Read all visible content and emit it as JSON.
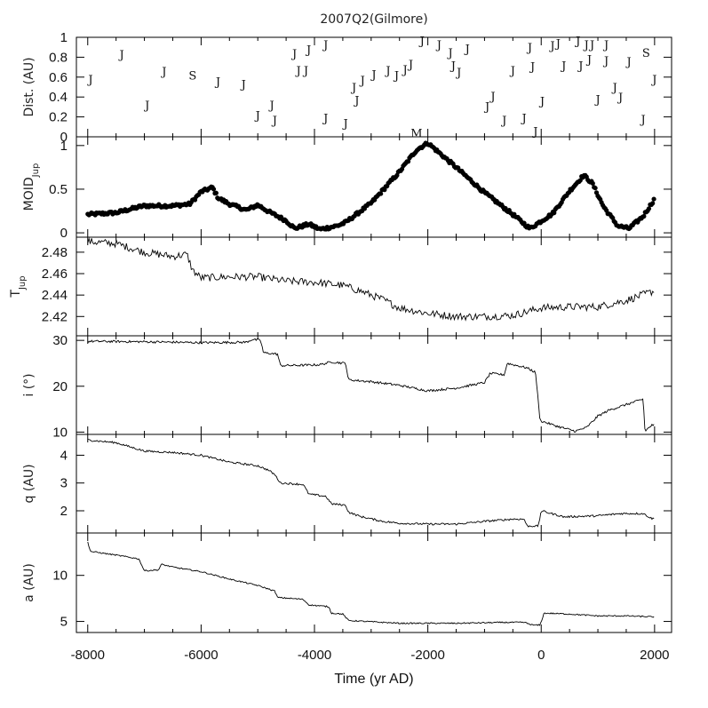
{
  "chart_data": {
    "type": "line",
    "title": "2007Q2(Gilmore)",
    "xlabel": "Time (yr AD)",
    "xlim": [
      -8200,
      2300
    ],
    "x_ticks": [
      -8000,
      -6000,
      -4000,
      -2000,
      0,
      2000
    ],
    "x_tick_labels": [
      "-8000",
      "-6000",
      "-4000",
      "-2000",
      "0",
      "2000"
    ],
    "panels": [
      {
        "id": "dist",
        "ylabel": "Dist. (AU)",
        "ylim": [
          0,
          1.0
        ],
        "y_ticks": [
          0,
          0.2,
          0.4,
          0.6,
          0.8,
          1
        ],
        "y_tick_labels": [
          "0",
          "0.2",
          "0.4",
          "0.6",
          "0.8",
          "1"
        ],
        "series_type": "encounters",
        "encounters": [
          {
            "x": -7950,
            "y": 0.58,
            "body": "J"
          },
          {
            "x": -7400,
            "y": 0.83,
            "body": "J"
          },
          {
            "x": -6950,
            "y": 0.32,
            "body": "J"
          },
          {
            "x": -6650,
            "y": 0.66,
            "body": "J"
          },
          {
            "x": -6150,
            "y": 0.62,
            "body": "S"
          },
          {
            "x": -5700,
            "y": 0.56,
            "body": "J"
          },
          {
            "x": -5250,
            "y": 0.53,
            "body": "J"
          },
          {
            "x": -5000,
            "y": 0.22,
            "body": "J"
          },
          {
            "x": -4750,
            "y": 0.32,
            "body": "J"
          },
          {
            "x": -4700,
            "y": 0.17,
            "body": "J"
          },
          {
            "x": -4350,
            "y": 0.84,
            "body": "J"
          },
          {
            "x": -4280,
            "y": 0.67,
            "body": "J"
          },
          {
            "x": -4150,
            "y": 0.67,
            "body": "J"
          },
          {
            "x": -4100,
            "y": 0.88,
            "body": "J"
          },
          {
            "x": -3800,
            "y": 0.19,
            "body": "J"
          },
          {
            "x": -3800,
            "y": 0.93,
            "body": "J"
          },
          {
            "x": -3450,
            "y": 0.14,
            "body": "J"
          },
          {
            "x": -3300,
            "y": 0.5,
            "body": "J"
          },
          {
            "x": -3250,
            "y": 0.37,
            "body": "J"
          },
          {
            "x": -3150,
            "y": 0.57,
            "body": "J"
          },
          {
            "x": -2950,
            "y": 0.63,
            "body": "J"
          },
          {
            "x": -2700,
            "y": 0.67,
            "body": "J"
          },
          {
            "x": -2550,
            "y": 0.62,
            "body": "J"
          },
          {
            "x": -2400,
            "y": 0.68,
            "body": "J"
          },
          {
            "x": -2300,
            "y": 0.73,
            "body": "J"
          },
          {
            "x": -2100,
            "y": 0.97,
            "body": "J"
          },
          {
            "x": -1800,
            "y": 0.93,
            "body": "J"
          },
          {
            "x": -1600,
            "y": 0.85,
            "body": "J"
          },
          {
            "x": -1550,
            "y": 0.72,
            "body": "J"
          },
          {
            "x": -1450,
            "y": 0.65,
            "body": "J"
          },
          {
            "x": -1300,
            "y": 0.89,
            "body": "J"
          },
          {
            "x": -950,
            "y": 0.31,
            "body": "J"
          },
          {
            "x": -850,
            "y": 0.41,
            "body": "J"
          },
          {
            "x": -650,
            "y": 0.17,
            "body": "J"
          },
          {
            "x": -500,
            "y": 0.67,
            "body": "J"
          },
          {
            "x": -300,
            "y": 0.19,
            "body": "J"
          },
          {
            "x": -200,
            "y": 0.9,
            "body": "J"
          },
          {
            "x": -150,
            "y": 0.71,
            "body": "J"
          },
          {
            "x": -100,
            "y": 0.06,
            "body": "J"
          },
          {
            "x": 20,
            "y": 0.36,
            "body": "J"
          },
          {
            "x": 200,
            "y": 0.92,
            "body": "J"
          },
          {
            "x": 300,
            "y": 0.94,
            "body": "J"
          },
          {
            "x": 400,
            "y": 0.72,
            "body": "J"
          },
          {
            "x": 650,
            "y": 0.97,
            "body": "J"
          },
          {
            "x": 700,
            "y": 0.72,
            "body": "J"
          },
          {
            "x": 800,
            "y": 0.93,
            "body": "J"
          },
          {
            "x": 850,
            "y": 0.78,
            "body": "J"
          },
          {
            "x": 900,
            "y": 0.93,
            "body": "J"
          },
          {
            "x": 1000,
            "y": 0.38,
            "body": "J"
          },
          {
            "x": 1150,
            "y": 0.93,
            "body": "J"
          },
          {
            "x": 1150,
            "y": 0.77,
            "body": "J"
          },
          {
            "x": 1300,
            "y": 0.5,
            "body": "J"
          },
          {
            "x": 1400,
            "y": 0.4,
            "body": "J"
          },
          {
            "x": 1550,
            "y": 0.76,
            "body": "J"
          },
          {
            "x": 1800,
            "y": 0.18,
            "body": "J"
          },
          {
            "x": 1850,
            "y": 0.85,
            "body": "S"
          },
          {
            "x": 2000,
            "y": 0.58,
            "body": "J"
          },
          {
            "x": -2200,
            "y": 0.04,
            "body": "M"
          }
        ]
      },
      {
        "id": "moid",
        "ylabel": "MOID",
        "ylabel_sub": "Jup",
        "ylim": [
          -0.05,
          1.1
        ],
        "y_ticks": [
          0,
          0.5,
          1
        ],
        "y_tick_labels": [
          "0",
          "0.5",
          "1"
        ],
        "series_type": "dots",
        "points": [
          [
            -8000,
            0.21
          ],
          [
            -7500,
            0.23
          ],
          [
            -7200,
            0.28
          ],
          [
            -7000,
            0.31
          ],
          [
            -6500,
            0.31
          ],
          [
            -6200,
            0.33
          ],
          [
            -6000,
            0.47
          ],
          [
            -5800,
            0.52
          ],
          [
            -5700,
            0.4
          ],
          [
            -5500,
            0.33
          ],
          [
            -5200,
            0.26
          ],
          [
            -5000,
            0.32
          ],
          [
            -4800,
            0.24
          ],
          [
            -4500,
            0.14
          ],
          [
            -4350,
            0.05
          ],
          [
            -4100,
            0.1
          ],
          [
            -3900,
            0.04
          ],
          [
            -3600,
            0.08
          ],
          [
            -3450,
            0.12
          ],
          [
            -3000,
            0.34
          ],
          [
            -2500,
            0.7
          ],
          [
            -2200,
            0.95
          ],
          [
            -2000,
            1.03
          ],
          [
            -1500,
            0.75
          ],
          [
            -1000,
            0.46
          ],
          [
            -500,
            0.21
          ],
          [
            -200,
            0.05
          ],
          [
            200,
            0.22
          ],
          [
            500,
            0.48
          ],
          [
            750,
            0.66
          ],
          [
            900,
            0.57
          ],
          [
            1100,
            0.3
          ],
          [
            1350,
            0.08
          ],
          [
            1550,
            0.05
          ],
          [
            1800,
            0.19
          ],
          [
            2000,
            0.39
          ]
        ]
      },
      {
        "id": "tjup",
        "ylabel": "T",
        "ylabel_sub": "Jup",
        "ylim": [
          2.402,
          2.494
        ],
        "y_ticks": [
          2.42,
          2.44,
          2.46,
          2.48
        ],
        "y_tick_labels": [
          "2.42",
          "2.44",
          "2.46",
          "2.48"
        ],
        "series_type": "noisy_line",
        "noise": 0.0035,
        "knots": [
          [
            -8000,
            2.49
          ],
          [
            -7500,
            2.488
          ],
          [
            -7000,
            2.48
          ],
          [
            -6500,
            2.476
          ],
          [
            -6250,
            2.478
          ],
          [
            -6150,
            2.463
          ],
          [
            -6000,
            2.456
          ],
          [
            -5500,
            2.457
          ],
          [
            -5000,
            2.457
          ],
          [
            -4500,
            2.453
          ],
          [
            -4000,
            2.452
          ],
          [
            -3500,
            2.449
          ],
          [
            -3200,
            2.444
          ],
          [
            -2800,
            2.436
          ],
          [
            -2500,
            2.428
          ],
          [
            -2000,
            2.423
          ],
          [
            -1500,
            2.42
          ],
          [
            -1000,
            2.42
          ],
          [
            -500,
            2.421
          ],
          [
            0,
            2.428
          ],
          [
            500,
            2.429
          ],
          [
            1000,
            2.429
          ],
          [
            1500,
            2.435
          ],
          [
            2000,
            2.444
          ]
        ]
      },
      {
        "id": "incl",
        "ylabel": "i (°)",
        "ylim": [
          9.5,
          31
        ],
        "y_ticks": [
          10,
          20,
          30
        ],
        "y_tick_labels": [
          "10",
          "20",
          "30"
        ],
        "series_type": "step_line",
        "noise": 0.25,
        "knots": [
          [
            -8000,
            29.8
          ],
          [
            -7000,
            29.7
          ],
          [
            -6000,
            29.5
          ],
          [
            -5200,
            29.6
          ],
          [
            -5100,
            30.2
          ],
          [
            -4950,
            30.0
          ],
          [
            -4900,
            27.3
          ],
          [
            -4650,
            27.0
          ],
          [
            -4600,
            24.5
          ],
          [
            -4100,
            24.6
          ],
          [
            -3900,
            24.7
          ],
          [
            -3700,
            25.3
          ],
          [
            -3450,
            25.0
          ],
          [
            -3400,
            21.4
          ],
          [
            -3000,
            21.0
          ],
          [
            -2500,
            20.2
          ],
          [
            -2000,
            19.0
          ],
          [
            -1500,
            19.6
          ],
          [
            -1000,
            20.8
          ],
          [
            -900,
            22.8
          ],
          [
            -650,
            22.5
          ],
          [
            -600,
            25.0
          ],
          [
            -250,
            24.0
          ],
          [
            -100,
            23.0
          ],
          [
            -20,
            12.5
          ],
          [
            300,
            11.2
          ],
          [
            600,
            10.2
          ],
          [
            800,
            11.0
          ],
          [
            1000,
            13.5
          ],
          [
            1200,
            14.8
          ],
          [
            1500,
            16.0
          ],
          [
            1800,
            17.2
          ],
          [
            1830,
            10.2
          ],
          [
            1950,
            11.5
          ]
        ]
      },
      {
        "id": "q",
        "ylabel": "q (AU)",
        "ylim": [
          1.2,
          4.75
        ],
        "y_ticks": [
          2,
          3,
          4
        ],
        "y_tick_labels": [
          "2",
          "3",
          "4"
        ],
        "series_type": "step_line",
        "noise": 0.035,
        "knots": [
          [
            -8000,
            4.55
          ],
          [
            -7500,
            4.45
          ],
          [
            -7000,
            4.15
          ],
          [
            -6500,
            4.1
          ],
          [
            -6000,
            4.0
          ],
          [
            -5500,
            3.75
          ],
          [
            -5000,
            3.62
          ],
          [
            -4800,
            3.45
          ],
          [
            -4700,
            3.3
          ],
          [
            -4600,
            3.0
          ],
          [
            -4200,
            2.95
          ],
          [
            -4100,
            2.6
          ],
          [
            -3800,
            2.52
          ],
          [
            -3700,
            2.25
          ],
          [
            -3450,
            2.2
          ],
          [
            -3400,
            1.95
          ],
          [
            -3200,
            1.8
          ],
          [
            -2800,
            1.62
          ],
          [
            -2500,
            1.55
          ],
          [
            -2000,
            1.52
          ],
          [
            -1500,
            1.52
          ],
          [
            -1000,
            1.62
          ],
          [
            -500,
            1.7
          ],
          [
            -300,
            1.7
          ],
          [
            -250,
            1.45
          ],
          [
            -50,
            1.45
          ],
          [
            0,
            2.0
          ],
          [
            400,
            1.78
          ],
          [
            1000,
            1.82
          ],
          [
            1400,
            1.9
          ],
          [
            1800,
            1.9
          ],
          [
            1950,
            1.72
          ]
        ]
      },
      {
        "id": "a",
        "ylabel": "a (AU)",
        "ylim": [
          3.8,
          14.6
        ],
        "y_ticks": [
          5,
          10
        ],
        "y_tick_labels": [
          "5",
          "10"
        ],
        "series_type": "step_line",
        "noise": 0.07,
        "knots": [
          [
            -8000,
            13.6
          ],
          [
            -7950,
            12.6
          ],
          [
            -7500,
            12.2
          ],
          [
            -7100,
            11.8
          ],
          [
            -7000,
            10.5
          ],
          [
            -6750,
            10.6
          ],
          [
            -6700,
            11.2
          ],
          [
            -6500,
            10.9
          ],
          [
            -6000,
            10.4
          ],
          [
            -5500,
            9.6
          ],
          [
            -5000,
            8.9
          ],
          [
            -4700,
            8.3
          ],
          [
            -4650,
            7.6
          ],
          [
            -4200,
            7.4
          ],
          [
            -4100,
            6.8
          ],
          [
            -3750,
            6.6
          ],
          [
            -3700,
            5.9
          ],
          [
            -3500,
            5.8
          ],
          [
            -3400,
            5.1
          ],
          [
            -2500,
            4.8
          ],
          [
            -1500,
            4.8
          ],
          [
            -600,
            4.9
          ],
          [
            -300,
            4.9
          ],
          [
            -150,
            4.6
          ],
          [
            -20,
            4.6
          ],
          [
            50,
            5.9
          ],
          [
            500,
            5.8
          ],
          [
            1000,
            5.6
          ],
          [
            1500,
            5.6
          ],
          [
            1950,
            5.5
          ]
        ]
      }
    ]
  }
}
